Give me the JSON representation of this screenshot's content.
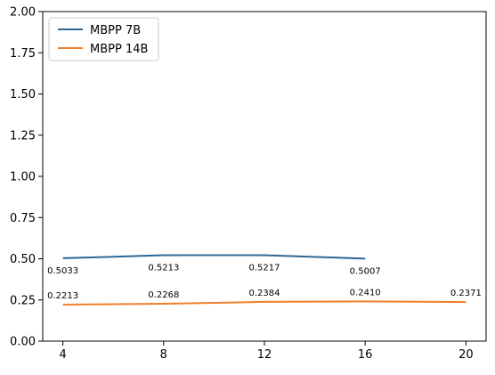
{
  "chart_data": {
    "type": "line",
    "title": "",
    "xlabel": "",
    "ylabel": "",
    "x": [
      4,
      8,
      12,
      16,
      20
    ],
    "xticks": [
      "4",
      "8",
      "12",
      "16",
      "20"
    ],
    "yticks": [
      "0.00",
      "0.25",
      "0.50",
      "0.75",
      "1.00",
      "1.25",
      "1.50",
      "1.75",
      "2.00"
    ],
    "ytick_values": [
      0,
      0.25,
      0.5,
      0.75,
      1.0,
      1.25,
      1.5,
      1.75,
      2.0
    ],
    "xlim": [
      3.2,
      20.8
    ],
    "ylim": [
      0,
      2.0
    ],
    "grid": false,
    "legend_position": "top-left",
    "series": [
      {
        "name": "MBPP 7B",
        "color": "#2f6796",
        "x": [
          4,
          8,
          12,
          16
        ],
        "values": [
          0.5033,
          0.5213,
          0.5217,
          0.5007
        ],
        "labels": [
          "0.5033",
          "0.5213",
          "0.5217",
          "0.5007"
        ],
        "label_position": "below"
      },
      {
        "name": "MBPP 14B",
        "color": "#f07f2c",
        "x": [
          4,
          8,
          12,
          16,
          20
        ],
        "values": [
          0.2213,
          0.2268,
          0.2384,
          0.241,
          0.2371
        ],
        "labels": [
          "0.2213",
          "0.2268",
          "0.2384",
          "0.2410",
          "0.2371"
        ],
        "label_position": "above"
      }
    ]
  }
}
